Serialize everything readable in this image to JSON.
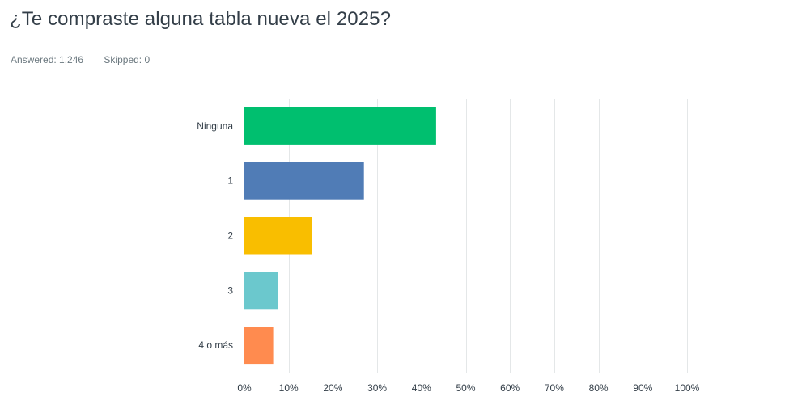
{
  "question": {
    "title": "¿Te compraste alguna tabla nueva el 2025?",
    "answered_label": "Answered:",
    "answered_value": "1,246",
    "skipped_label": "Skipped:",
    "skipped_value": "0"
  },
  "chart_data": {
    "type": "bar",
    "orientation": "horizontal",
    "title": "¿Te compraste alguna tabla nueva el 2025?",
    "categories": [
      "Ninguna",
      "1",
      "2",
      "3",
      "4 o más"
    ],
    "values": [
      43.3,
      27.0,
      15.2,
      7.5,
      6.5
    ],
    "unit": "%",
    "xlim": [
      0,
      100
    ],
    "ticks": [
      0,
      10,
      20,
      30,
      40,
      50,
      60,
      70,
      80,
      90,
      100
    ],
    "tick_labels": [
      "0%",
      "10%",
      "20%",
      "30%",
      "40%",
      "50%",
      "60%",
      "70%",
      "80%",
      "90%",
      "100%"
    ],
    "colors": [
      "#00bf6f",
      "#507cb6",
      "#f9be00",
      "#6bc8cd",
      "#ff8b4f"
    ],
    "grid": true,
    "legend": "none"
  }
}
